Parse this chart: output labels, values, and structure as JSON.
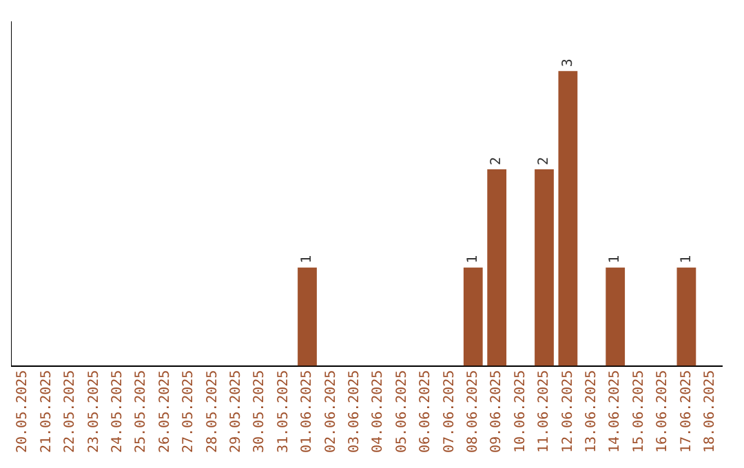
{
  "chart_data": {
    "type": "bar",
    "categories": [
      "20.05.2025",
      "21.05.2025",
      "22.05.2025",
      "23.05.2025",
      "24.05.2025",
      "25.05.2025",
      "26.05.2025",
      "27.05.2025",
      "28.05.2025",
      "29.05.2025",
      "30.05.2025",
      "31.05.2025",
      "01.06.2025",
      "02.06.2025",
      "03.06.2025",
      "04.06.2025",
      "05.06.2025",
      "06.06.2025",
      "07.06.2025",
      "08.06.2025",
      "09.06.2025",
      "10.06.2025",
      "11.06.2025",
      "12.06.2025",
      "13.06.2025",
      "14.06.2025",
      "15.06.2025",
      "16.06.2025",
      "17.06.2025",
      "18.06.2025"
    ],
    "values": [
      null,
      null,
      null,
      null,
      null,
      null,
      null,
      null,
      null,
      null,
      null,
      null,
      1,
      null,
      null,
      null,
      null,
      null,
      null,
      1,
      2,
      null,
      2,
      3,
      null,
      1,
      null,
      null,
      1,
      null
    ],
    "color": "#a0522d",
    "data_labels": true,
    "grid": false,
    "legend": false,
    "tick_labels": "x"
  }
}
